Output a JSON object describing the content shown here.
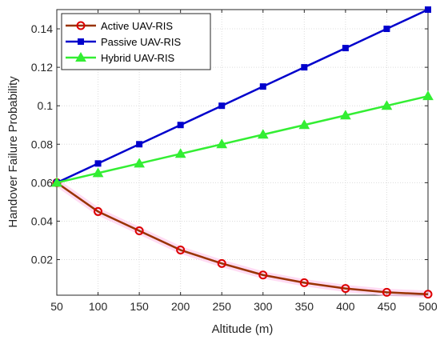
{
  "chart_data": {
    "type": "line",
    "title": "",
    "xlabel": "Altitude (m)",
    "ylabel": "Handover Failure Probability",
    "x": [
      50,
      100,
      150,
      200,
      250,
      300,
      350,
      400,
      450,
      500
    ],
    "xlim": [
      50,
      500
    ],
    "ylim": [
      0.0015,
      0.15
    ],
    "xticks": [
      50,
      100,
      150,
      200,
      250,
      300,
      350,
      400,
      450,
      500
    ],
    "yticks": [
      0.02,
      0.04,
      0.06,
      0.08,
      0.1,
      0.12,
      0.14
    ],
    "ytick_labels": [
      "0.02",
      "0.04",
      "0.06",
      "0.08",
      "0.1",
      "0.12",
      "0.14"
    ],
    "grid": true,
    "legend_position": "top-left",
    "series": [
      {
        "name": "Active UAV-RIS",
        "marker": "circle",
        "color": "#dd0000",
        "line_color": "#993300",
        "values": [
          0.06,
          0.045,
          0.035,
          0.025,
          0.018,
          0.012,
          0.008,
          0.005,
          0.003,
          0.002
        ]
      },
      {
        "name": "Passive UAV-RIS",
        "marker": "square",
        "color": "#0000cc",
        "line_color": "#0000cc",
        "values": [
          0.06,
          0.07,
          0.08,
          0.09,
          0.1,
          0.11,
          0.12,
          0.13,
          0.14,
          0.15
        ]
      },
      {
        "name": "Hybrid UAV-RIS",
        "marker": "triangle",
        "color": "#33ee33",
        "line_color": "#33ee33",
        "values": [
          0.06,
          0.065,
          0.07,
          0.075,
          0.08,
          0.085,
          0.09,
          0.095,
          0.1,
          0.105
        ]
      }
    ]
  }
}
